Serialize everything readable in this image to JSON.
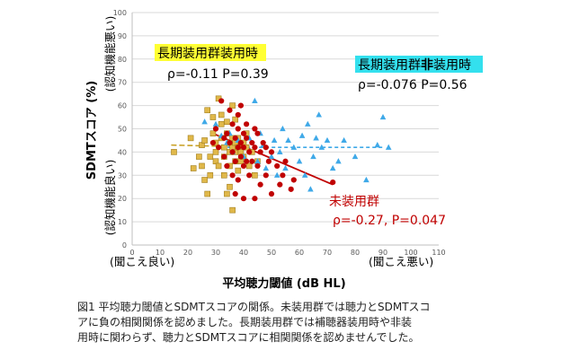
{
  "chart_data": {
    "type": "scatter",
    "xlabel": "平均聴力閾値 (dB HL)",
    "ylabel": "SDMTスコア (%)",
    "xlim": [
      0,
      110
    ],
    "ylim": [
      0,
      100
    ],
    "x_ticks": [
      0,
      10,
      20,
      30,
      40,
      50,
      60,
      70,
      80,
      90,
      100,
      110
    ],
    "y_ticks": [
      0,
      10,
      20,
      30,
      40,
      50,
      60,
      70,
      80,
      90,
      100
    ],
    "x_note_left": "(聞こえ良い)",
    "x_note_right": "(聞こえ悪い)",
    "y_note_top": "(認知機能悪い)",
    "y_note_bottom": "(認知機能良い)",
    "grid": "horizontal",
    "colors": {
      "unaided": "#c00000",
      "aided": "#c9a227",
      "non_aided": "#3fa9e8",
      "aided_fill": "#e0b84a",
      "label_yellow": "#ffff33",
      "label_cyan": "#33e0ee"
    },
    "annotations": {
      "aided_group": "長期装用群装用時",
      "aided_stats": "ρ=-0.11 P=0.39",
      "nonaided_group_a": "長期装用群",
      "nonaided_group_b": "非",
      "nonaided_group_c": "装用時",
      "nonaided_stats": "ρ=-0.076 P=0.56",
      "unaided_group": "未装用群",
      "unaided_stats": "ρ=-0.27, P=0.047"
    },
    "series": [
      {
        "key": "unaided",
        "marker": "circle",
        "points": [
          [
            29,
            44
          ],
          [
            30,
            50
          ],
          [
            31,
            42
          ],
          [
            32,
            62
          ],
          [
            33,
            46
          ],
          [
            33,
            38
          ],
          [
            34,
            48
          ],
          [
            34,
            34
          ],
          [
            35,
            44
          ],
          [
            35,
            58
          ],
          [
            36,
            52
          ],
          [
            36,
            40
          ],
          [
            36,
            30
          ],
          [
            37,
            36
          ],
          [
            37,
            46
          ],
          [
            37,
            22
          ],
          [
            38,
            42
          ],
          [
            38,
            50
          ],
          [
            38,
            56
          ],
          [
            38,
            28
          ],
          [
            39,
            38
          ],
          [
            39,
            44
          ],
          [
            39,
            60
          ],
          [
            40,
            34
          ],
          [
            40,
            42
          ],
          [
            40,
            48
          ],
          [
            40,
            20
          ],
          [
            41,
            36
          ],
          [
            41,
            46
          ],
          [
            41,
            52
          ],
          [
            42,
            40
          ],
          [
            42,
            30
          ],
          [
            43,
            44
          ],
          [
            43,
            36
          ],
          [
            44,
            42
          ],
          [
            44,
            20
          ],
          [
            44,
            50
          ],
          [
            45,
            48
          ],
          [
            45,
            34
          ],
          [
            46,
            40
          ],
          [
            46,
            26
          ],
          [
            47,
            44
          ],
          [
            48,
            30
          ],
          [
            48,
            42
          ],
          [
            49,
            36
          ],
          [
            50,
            40
          ],
          [
            50,
            22
          ],
          [
            52,
            34
          ],
          [
            53,
            26
          ],
          [
            54,
            30
          ],
          [
            55,
            36
          ],
          [
            57,
            24
          ],
          [
            58,
            28
          ],
          [
            72,
            27
          ]
        ],
        "trend": [
          [
            29,
            48
          ],
          [
            72,
            26
          ]
        ]
      },
      {
        "key": "aided",
        "marker": "square",
        "points": [
          [
            15,
            40
          ],
          [
            21,
            46
          ],
          [
            22,
            33
          ],
          [
            24,
            38
          ],
          [
            25,
            34
          ],
          [
            25,
            43
          ],
          [
            26,
            45
          ],
          [
            26,
            28
          ],
          [
            27,
            22
          ],
          [
            27,
            58
          ],
          [
            28,
            30
          ],
          [
            28,
            38
          ],
          [
            29,
            55
          ],
          [
            29,
            48
          ],
          [
            30,
            36
          ],
          [
            30,
            40
          ],
          [
            30,
            44
          ],
          [
            31,
            63
          ],
          [
            31,
            34
          ],
          [
            32,
            52
          ],
          [
            32,
            46
          ],
          [
            32,
            56
          ],
          [
            33,
            38
          ],
          [
            33,
            42
          ],
          [
            33,
            30
          ],
          [
            34,
            48
          ],
          [
            34,
            53
          ],
          [
            35,
            44
          ],
          [
            35,
            40
          ],
          [
            35,
            34
          ],
          [
            35,
            25
          ],
          [
            36,
            42
          ],
          [
            36,
            46
          ],
          [
            36,
            60
          ],
          [
            37,
            36
          ],
          [
            37,
            40
          ],
          [
            37,
            44
          ],
          [
            37,
            54
          ],
          [
            38,
            42
          ],
          [
            38,
            46
          ],
          [
            38,
            32
          ],
          [
            39,
            40
          ],
          [
            39,
            36
          ],
          [
            40,
            44
          ],
          [
            40,
            38
          ],
          [
            41,
            42
          ],
          [
            41,
            48
          ],
          [
            42,
            34
          ],
          [
            43,
            40
          ],
          [
            44,
            30
          ],
          [
            45,
            36
          ],
          [
            36,
            15
          ],
          [
            34,
            22
          ]
        ],
        "trend": [
          [
            14,
            43
          ],
          [
            49,
            42
          ]
        ]
      },
      {
        "key": "non_aided",
        "marker": "triangle",
        "points": [
          [
            26,
            53
          ],
          [
            30,
            52
          ],
          [
            32,
            47
          ],
          [
            34,
            44
          ],
          [
            35,
            48
          ],
          [
            36,
            40
          ],
          [
            38,
            45
          ],
          [
            40,
            38
          ],
          [
            42,
            46
          ],
          [
            44,
            62
          ],
          [
            45,
            36
          ],
          [
            46,
            48
          ],
          [
            47,
            43
          ],
          [
            48,
            33
          ],
          [
            50,
            38
          ],
          [
            51,
            45
          ],
          [
            52,
            30
          ],
          [
            53,
            40
          ],
          [
            54,
            50
          ],
          [
            55,
            33
          ],
          [
            56,
            45
          ],
          [
            58,
            42
          ],
          [
            60,
            36
          ],
          [
            61,
            47
          ],
          [
            62,
            30
          ],
          [
            63,
            52
          ],
          [
            64,
            24
          ],
          [
            65,
            38
          ],
          [
            66,
            46
          ],
          [
            67,
            56
          ],
          [
            68,
            42
          ],
          [
            70,
            45
          ],
          [
            72,
            33
          ],
          [
            74,
            36
          ],
          [
            76,
            45
          ],
          [
            80,
            38
          ],
          [
            84,
            28
          ],
          [
            88,
            43
          ],
          [
            90,
            55
          ],
          [
            92,
            42
          ]
        ],
        "trend": [
          [
            32,
            42
          ],
          [
            90,
            42
          ]
        ]
      }
    ]
  },
  "caption": {
    "line1": "図1 平均聴力閾値とSDMTスコアの関係。未装用群では聴力とSDMTスコ",
    "line2": "アに負の相関関係を認めました。長期装用群では補聴器装用時や非装",
    "line3": "用時に関わらず、聴力とSDMTスコアに相関関係を認めませんでした。"
  }
}
